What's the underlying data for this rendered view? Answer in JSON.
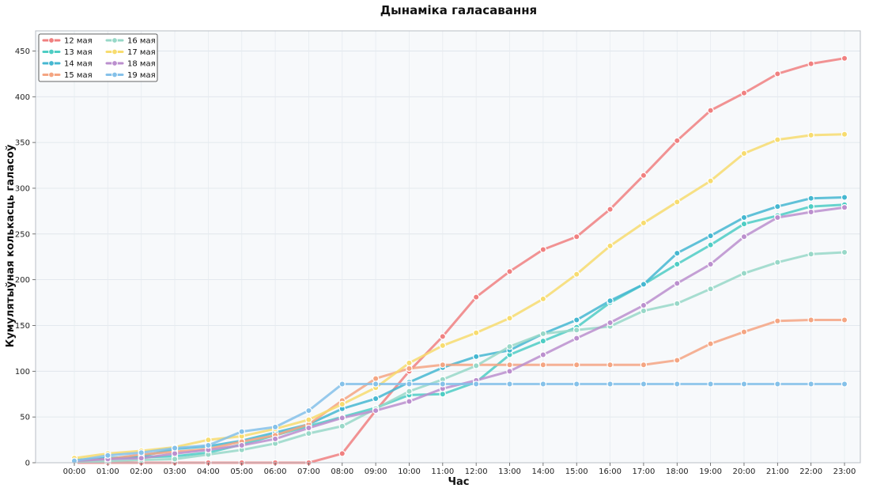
{
  "chart_data": {
    "type": "line",
    "title": "Дынаміка галасавання",
    "xlabel": "Час",
    "ylabel": "Кумулятыўная колькасць галасоў",
    "categories": [
      "00:00",
      "01:00",
      "02:00",
      "03:00",
      "04:00",
      "05:00",
      "06:00",
      "07:00",
      "08:00",
      "09:00",
      "10:00",
      "11:00",
      "12:00",
      "13:00",
      "14:00",
      "15:00",
      "16:00",
      "17:00",
      "18:00",
      "19:00",
      "20:00",
      "21:00",
      "22:00",
      "23:00"
    ],
    "ylim": [
      0,
      472
    ],
    "yticks": [
      0,
      50,
      100,
      150,
      200,
      250,
      300,
      350,
      400,
      450
    ],
    "grid": true,
    "legend_position": "top-left",
    "series": [
      {
        "name": "12 мая",
        "color": "#f08080",
        "values": [
          0,
          0,
          0,
          0,
          0,
          0,
          0,
          0,
          10,
          57,
          100,
          138,
          181,
          209,
          233,
          247,
          277,
          314,
          352,
          385,
          404,
          425,
          436,
          442
        ]
      },
      {
        "name": "13 мая",
        "color": "#4ecdc4",
        "values": [
          3,
          5,
          6,
          7,
          11,
          20,
          30,
          40,
          50,
          60,
          74,
          75,
          88,
          118,
          133,
          148,
          175,
          195,
          217,
          238,
          261,
          270,
          280,
          282
        ]
      },
      {
        "name": "14 мая",
        "color": "#45b7d1",
        "values": [
          2,
          5,
          7,
          15,
          18,
          24,
          33,
          42,
          59,
          70,
          88,
          104,
          116,
          123,
          141,
          156,
          177,
          195,
          229,
          248,
          268,
          280,
          289,
          290
        ]
      },
      {
        "name": "15 мая",
        "color": "#f4a582",
        "values": [
          2,
          4,
          9,
          12,
          15,
          23,
          30,
          42,
          68,
          92,
          103,
          107,
          107,
          107,
          107,
          107,
          107,
          107,
          112,
          130,
          143,
          155,
          156,
          156
        ]
      },
      {
        "name": "16 мая",
        "color": "#98d8c8",
        "values": [
          1,
          2,
          3,
          4,
          9,
          14,
          21,
          32,
          40,
          59,
          78,
          91,
          106,
          127,
          141,
          145,
          149,
          166,
          174,
          190,
          207,
          219,
          228,
          230
        ]
      },
      {
        "name": "17 мая",
        "color": "#f7dc6f",
        "values": [
          5,
          10,
          13,
          17,
          25,
          29,
          37,
          47,
          64,
          82,
          109,
          128,
          142,
          158,
          179,
          206,
          237,
          262,
          285,
          308,
          338,
          353,
          358,
          359
        ]
      },
      {
        "name": "18 мая",
        "color": "#bb8fce",
        "values": [
          2,
          4,
          5,
          10,
          14,
          19,
          26,
          38,
          49,
          57,
          67,
          81,
          90,
          100,
          118,
          136,
          153,
          172,
          196,
          217,
          247,
          268,
          274,
          279
        ]
      },
      {
        "name": "19 мая",
        "color": "#85c1e9",
        "values": [
          2,
          8,
          11,
          16,
          19,
          34,
          39,
          57,
          86,
          86,
          86,
          86,
          86,
          86,
          86,
          86,
          86,
          86,
          86,
          86,
          86,
          86,
          86,
          86
        ]
      }
    ]
  }
}
